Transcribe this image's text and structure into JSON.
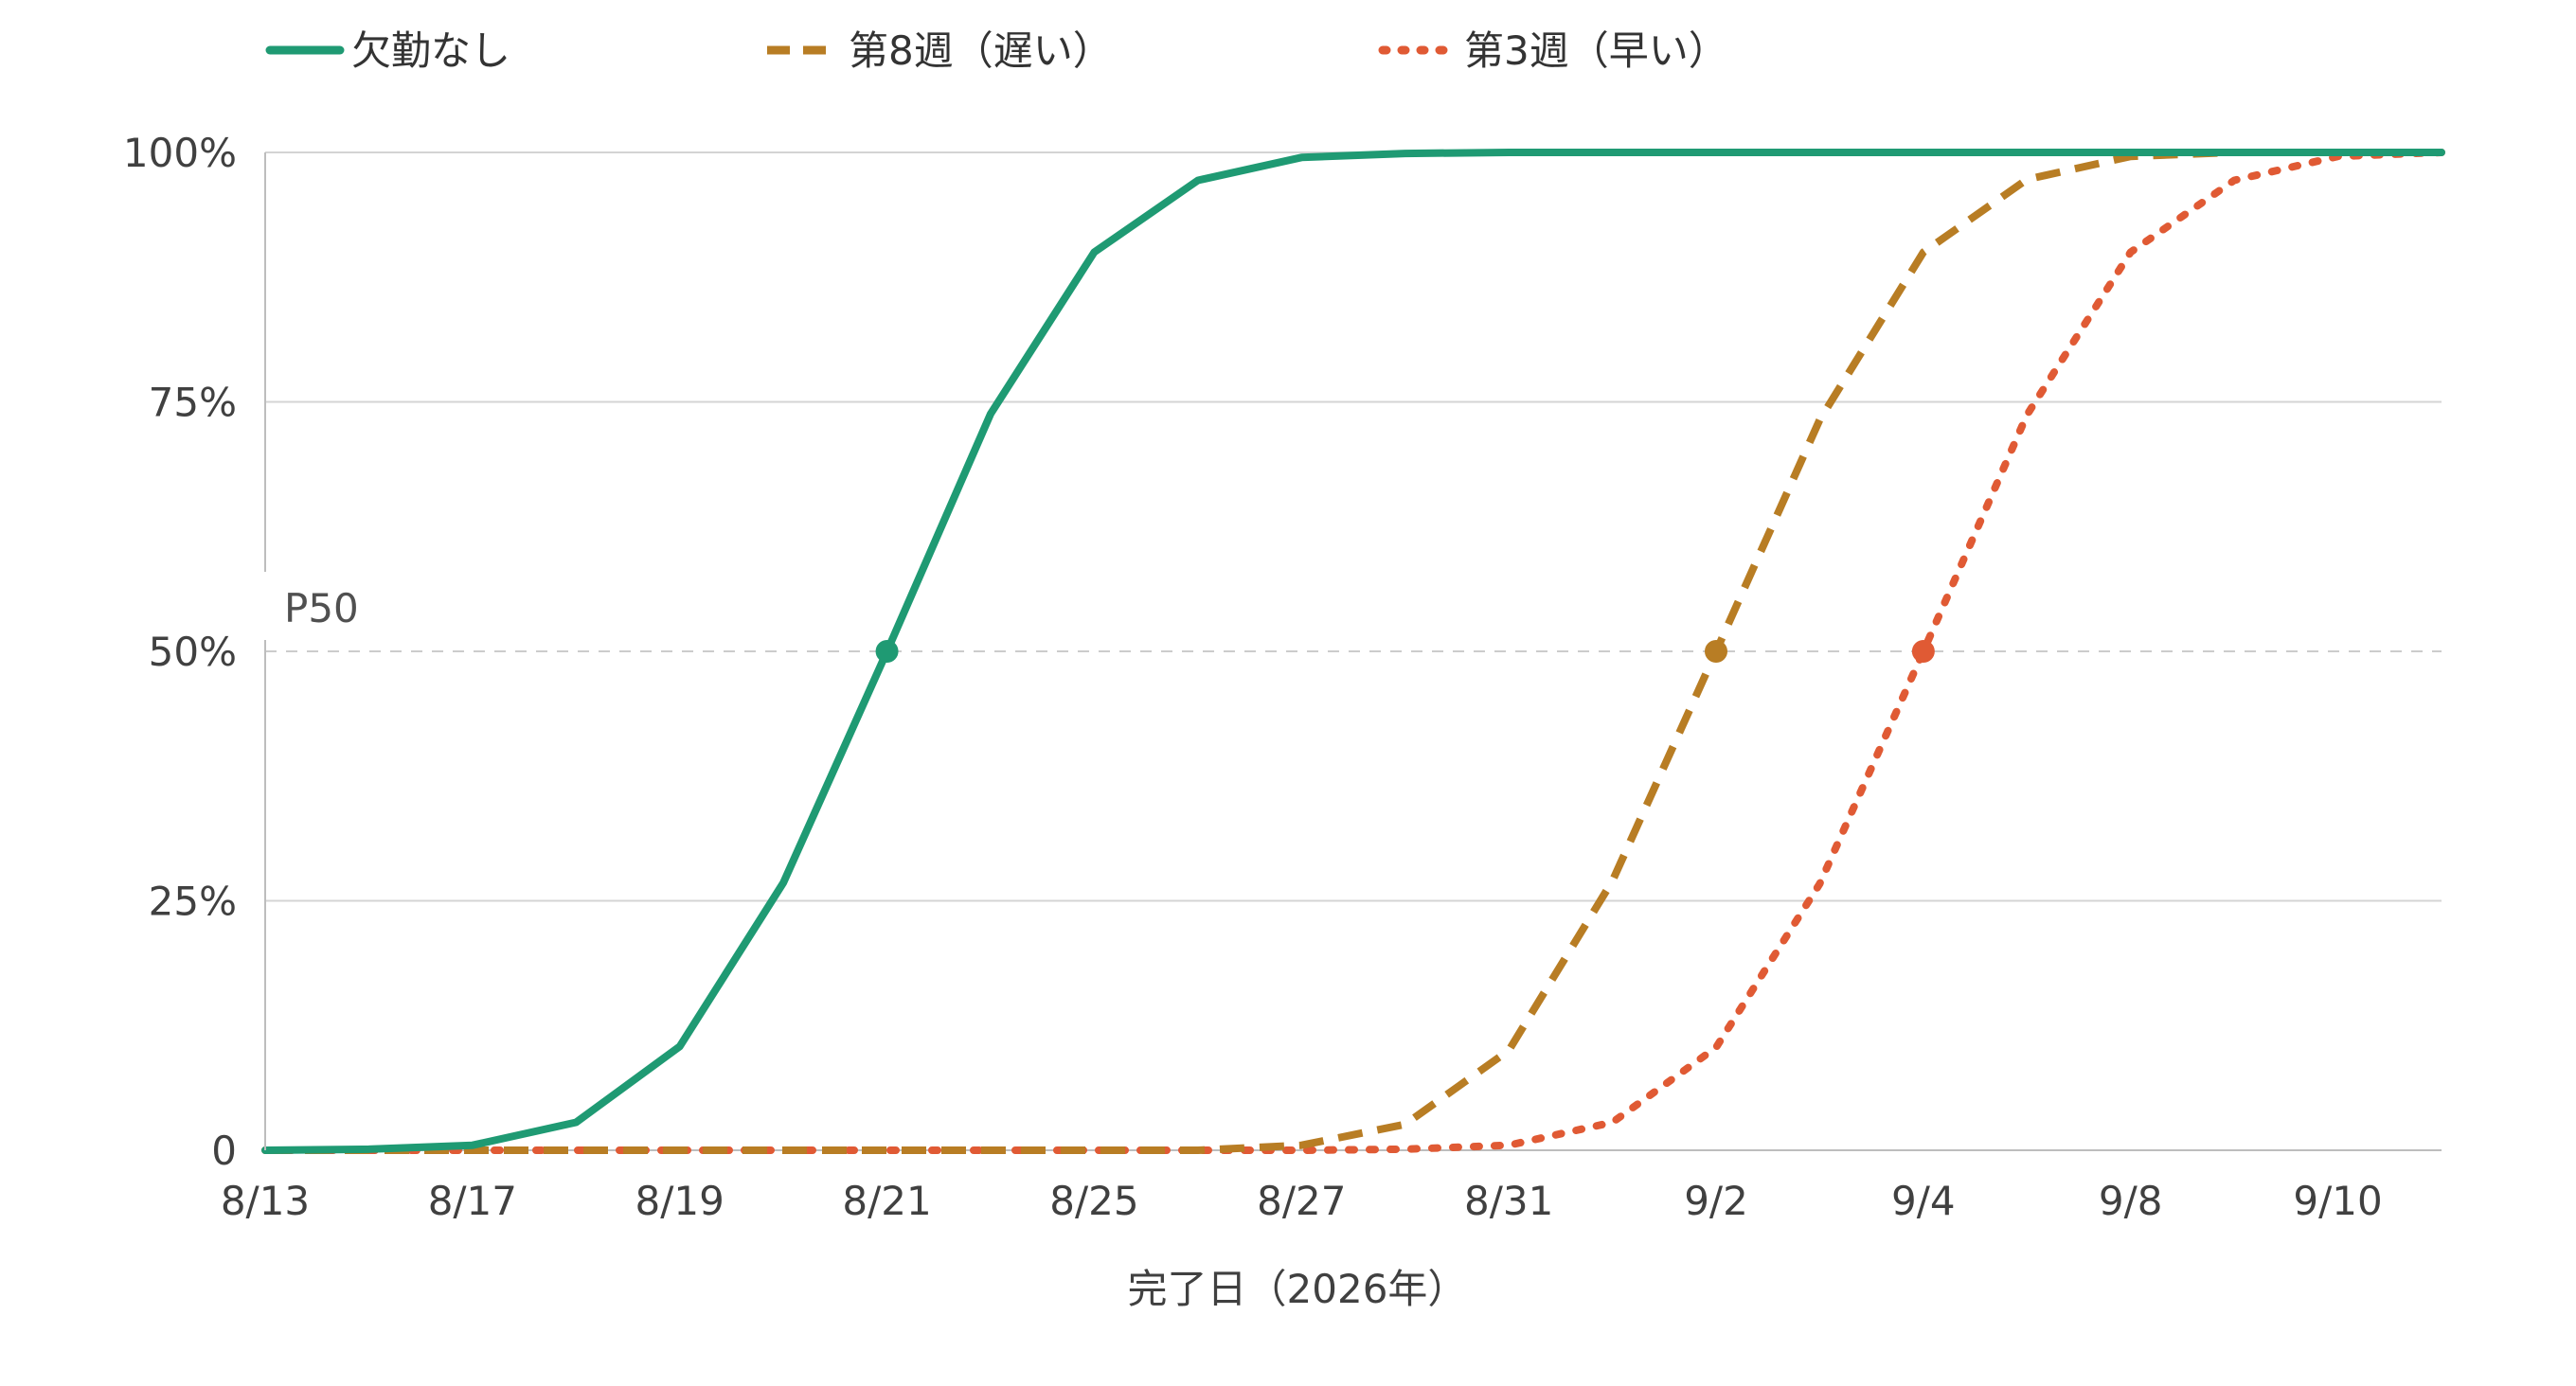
{
  "chart_data": {
    "type": "line",
    "title": "",
    "xlabel": "完了日（2026年）",
    "ylabel": "",
    "x_ticks": [
      "8/13",
      "8/17",
      "8/19",
      "8/21",
      "8/25",
      "8/27",
      "8/31",
      "9/2",
      "9/4",
      "9/8",
      "9/10"
    ],
    "y_ticks": [
      "0",
      "25%",
      "50%",
      "75%",
      "100%"
    ],
    "ylim": [
      0,
      100
    ],
    "grid": true,
    "legend_position": "top",
    "reference_line": {
      "y": 50,
      "label": "P50"
    },
    "series": [
      {
        "name": "欠勤なし",
        "color": "#1f9a73",
        "style": "solid",
        "x": [
          0,
          0.5,
          1,
          1.5,
          2,
          2.5,
          3,
          3.5,
          4,
          4.5,
          5,
          5.5,
          6,
          6.5,
          7,
          7.5,
          8,
          8.5,
          9,
          9.5,
          10,
          10.5
        ],
        "values": [
          0,
          0.1,
          0.5,
          2.8,
          10.4,
          26.8,
          50,
          73.8,
          90,
          97.2,
          99.5,
          99.9,
          100,
          100,
          100,
          100,
          100,
          100,
          100,
          100,
          100,
          100
        ],
        "marker": {
          "x": 3,
          "value": 50
        }
      },
      {
        "name": "第8週（遅い）",
        "color": "#b87d24",
        "style": "dashed",
        "x": [
          0,
          0.5,
          1,
          1.5,
          2,
          2.5,
          3,
          3.5,
          4,
          4.5,
          5,
          5.5,
          6,
          6.5,
          7,
          7.5,
          8,
          8.5,
          9,
          9.5,
          10,
          10.5
        ],
        "values": [
          0,
          0,
          0,
          0,
          0,
          0,
          0,
          0,
          0,
          0,
          0.5,
          2.6,
          10,
          27,
          50,
          73.2,
          90,
          97.3,
          99.6,
          100,
          100,
          100
        ],
        "marker": {
          "x": 7,
          "value": 50
        }
      },
      {
        "name": "第3週（早い）",
        "color": "#e05a34",
        "style": "dotted",
        "x": [
          0,
          0.5,
          1,
          1.5,
          2,
          2.5,
          3,
          3.5,
          4,
          4.5,
          5,
          5.5,
          6,
          6.5,
          7,
          7.5,
          8,
          8.5,
          9,
          9.5,
          10,
          10.5
        ],
        "values": [
          0,
          0,
          0,
          0,
          0,
          0,
          0,
          0,
          0,
          0,
          0,
          0.1,
          0.5,
          2.8,
          10.3,
          26.7,
          50,
          73.7,
          90,
          97.2,
          99.6,
          100
        ],
        "marker": {
          "x": 8,
          "value": 50
        }
      }
    ]
  }
}
